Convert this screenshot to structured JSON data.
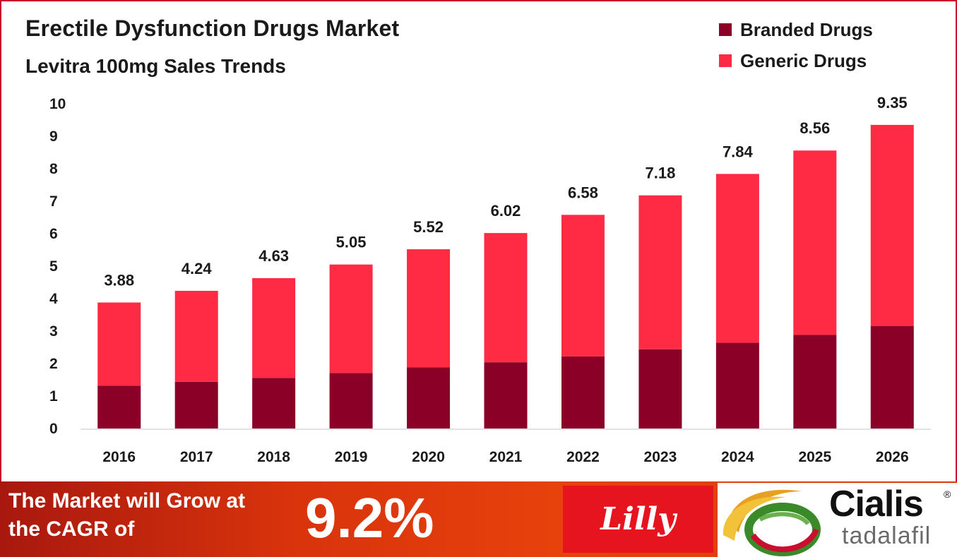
{
  "colors": {
    "branded": "#8a0026",
    "generic": "#ff2b45",
    "axis_text": "#1a1a1a",
    "frame": "#c8102e",
    "lilly_red": "#e5141e"
  },
  "chart_data": {
    "type": "bar",
    "stacked": true,
    "title": "Erectile Dysfunction Drugs Market",
    "subtitle": "Levitra 100mg Sales Trends",
    "xlabel": "",
    "ylabel": "",
    "ylim": [
      0,
      10
    ],
    "yticks": [
      "0",
      "1",
      "2",
      "3",
      "4",
      "5",
      "6",
      "7",
      "8",
      "9",
      "10"
    ],
    "grid": false,
    "legend_position": "top-right",
    "categories": [
      "2016",
      "2017",
      "2018",
      "2019",
      "2020",
      "2021",
      "2022",
      "2023",
      "2024",
      "2025",
      "2026"
    ],
    "totals": [
      3.88,
      4.24,
      4.63,
      5.05,
      5.52,
      6.02,
      6.58,
      7.18,
      7.84,
      8.56,
      9.35
    ],
    "total_labels": [
      "3.88",
      "4.24",
      "4.63",
      "5.05",
      "5.52",
      "6.02",
      "6.58",
      "7.18",
      "7.84",
      "8.56",
      "9.35"
    ],
    "series": [
      {
        "name": "Branded Drugs",
        "values": [
          1.32,
          1.44,
          1.56,
          1.71,
          1.88,
          2.04,
          2.22,
          2.44,
          2.64,
          2.88,
          3.16
        ]
      },
      {
        "name": "Generic Drugs",
        "values": [
          2.56,
          2.8,
          3.07,
          3.34,
          3.64,
          3.98,
          4.36,
          4.74,
          5.2,
          5.68,
          6.19
        ]
      }
    ]
  },
  "banner": {
    "line1": "The Market will Grow at",
    "line2": "the CAGR of",
    "cagr_value": "9.2%"
  },
  "logos": {
    "lilly": "Lilly",
    "cialis_name": "Cialis",
    "cialis_reg": "®",
    "cialis_sub": "tadalafil"
  }
}
